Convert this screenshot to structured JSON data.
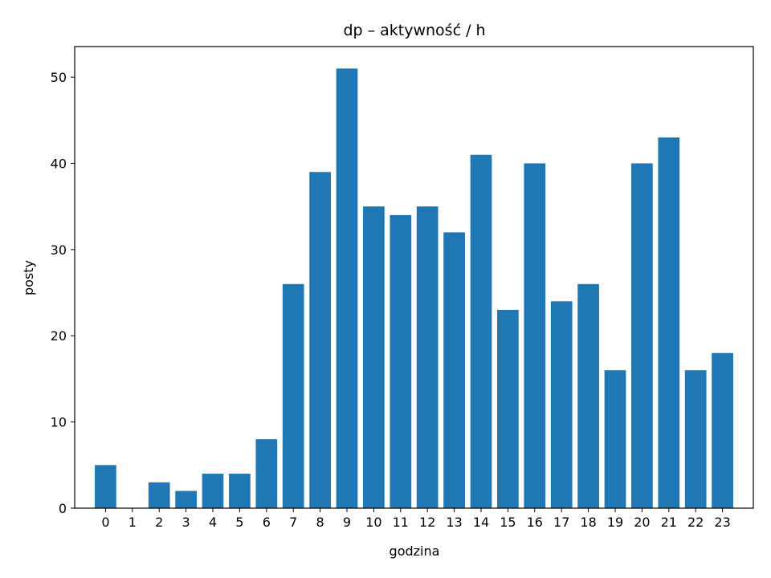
{
  "chart_data": {
    "type": "bar",
    "title": "dp – aktywność / h",
    "xlabel": "godzina",
    "ylabel": "posty",
    "categories": [
      "0",
      "1",
      "2",
      "3",
      "4",
      "5",
      "6",
      "7",
      "8",
      "9",
      "10",
      "11",
      "12",
      "13",
      "14",
      "15",
      "16",
      "17",
      "18",
      "19",
      "20",
      "21",
      "22",
      "23"
    ],
    "values": [
      5,
      0,
      3,
      2,
      4,
      4,
      8,
      26,
      39,
      51,
      35,
      34,
      35,
      32,
      41,
      23,
      40,
      24,
      26,
      16,
      40,
      43,
      16,
      18
    ],
    "ylim": [
      0,
      53.55
    ],
    "yticks": [
      0,
      10,
      20,
      30,
      40,
      50
    ],
    "grid": false,
    "legend": "none",
    "bar_color": "#1f77b4"
  }
}
